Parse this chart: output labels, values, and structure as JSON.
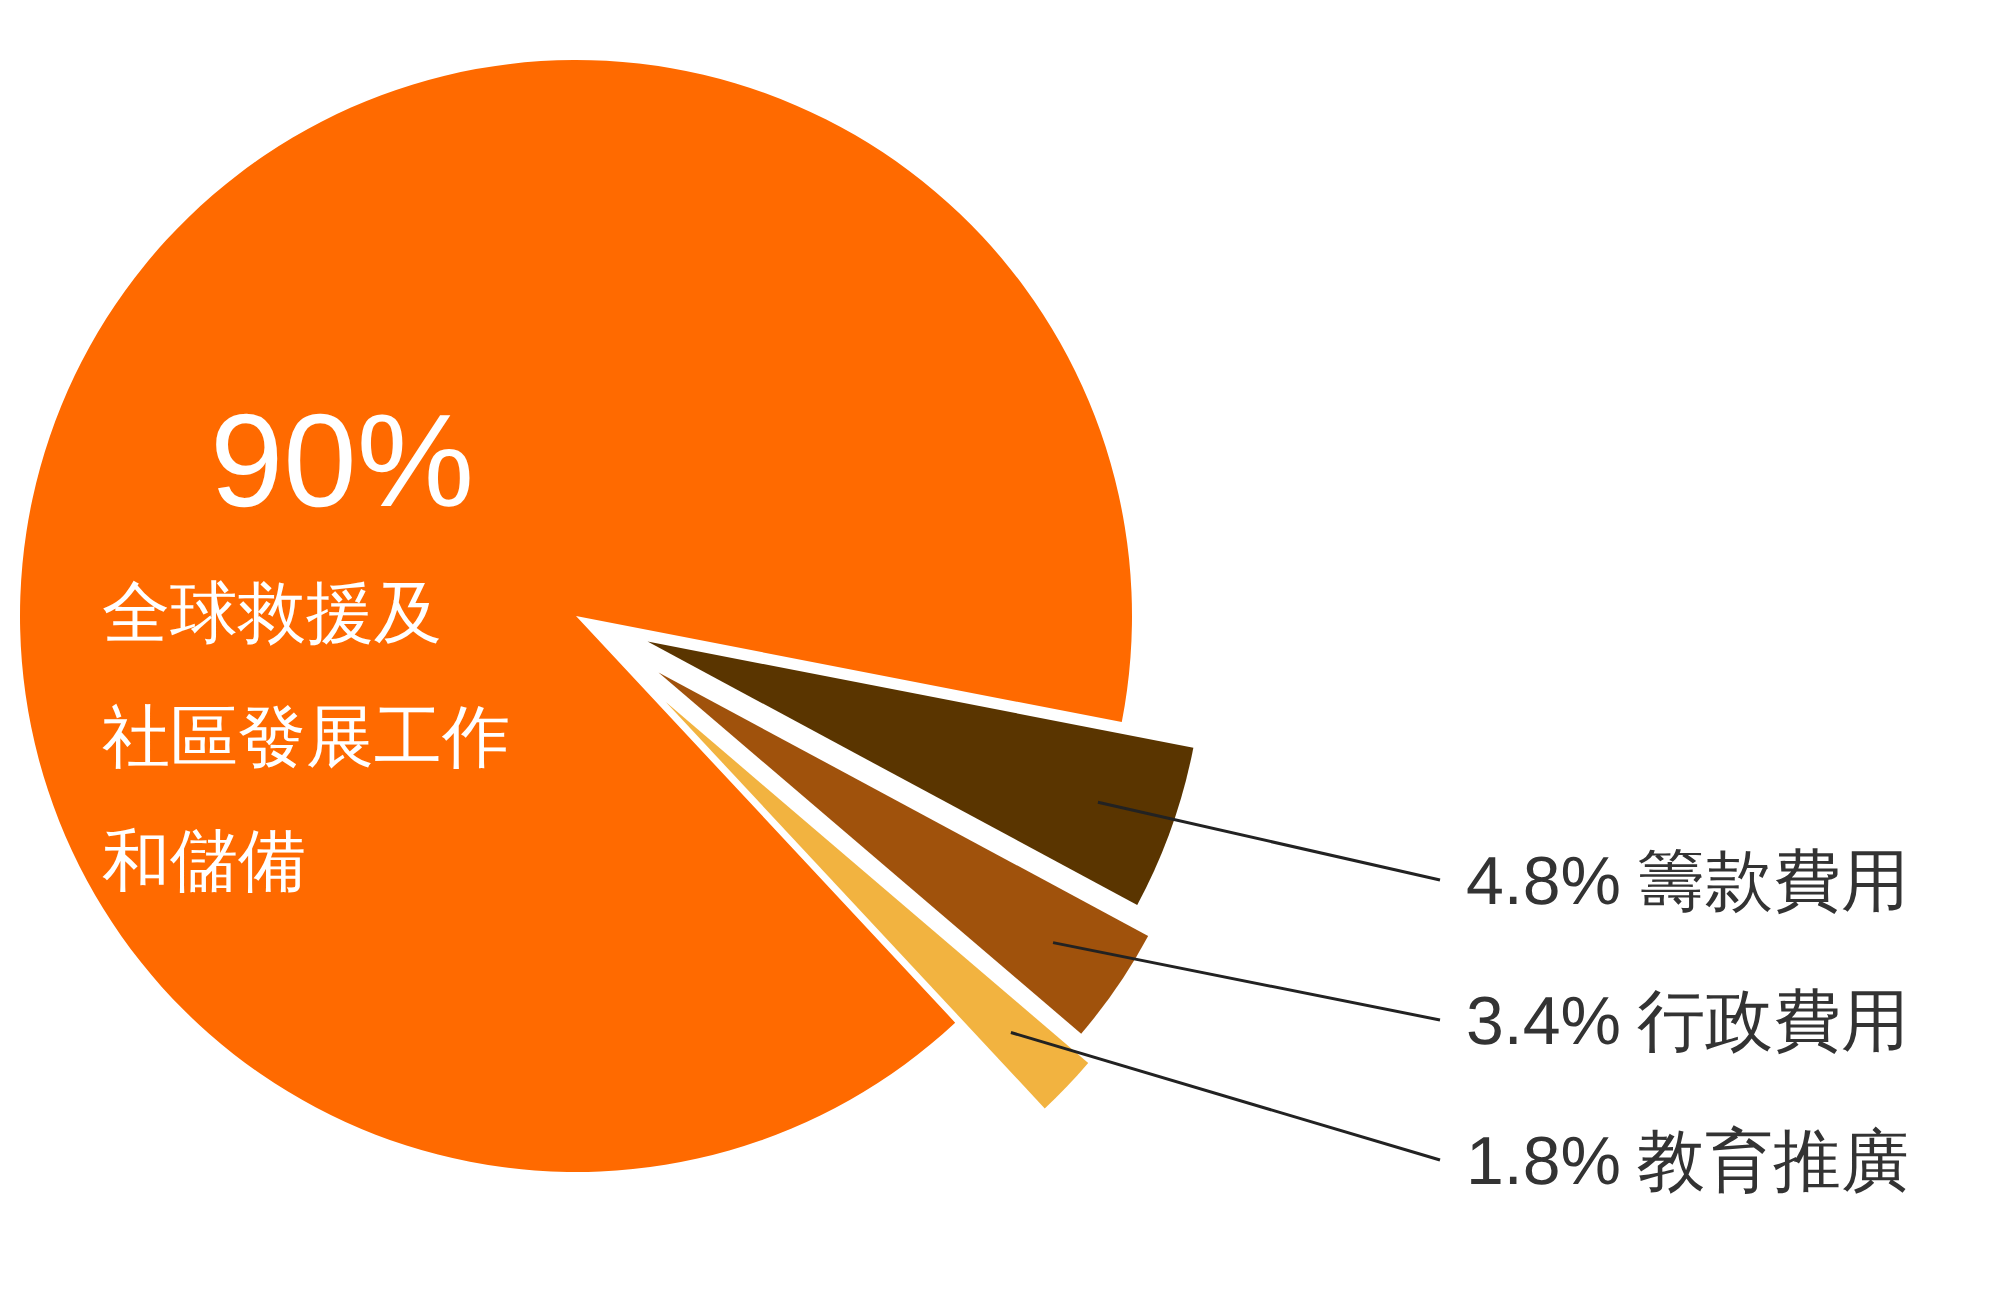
{
  "chart_data": {
    "type": "pie",
    "categories": [
      "全球救援及社區發展工作和儲備",
      "籌款費用",
      "行政費用",
      "教育推廣"
    ],
    "values": [
      90,
      4.8,
      3.4,
      1.8
    ],
    "value_labels": [
      "90%",
      "4.8%",
      "3.4%",
      "1.8%"
    ],
    "colors": [
      "#ff6a00",
      "#5a3500",
      "#a0520c",
      "#f2b340"
    ],
    "legend": false
  }
}
